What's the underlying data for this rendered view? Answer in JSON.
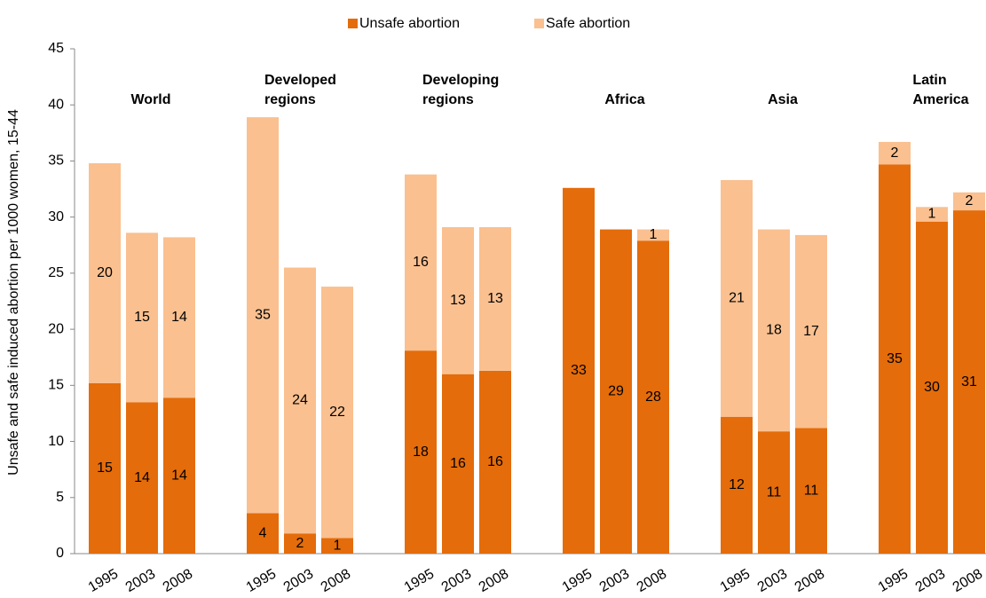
{
  "chart_data": {
    "type": "stacked_bar",
    "y_label": "Unsafe and safe induced abortion per 1000 women, 15-44",
    "group_labels": [
      "World",
      "Developed regions",
      "Developing regions",
      "Africa",
      "Asia",
      "Latin America"
    ],
    "categories": [
      "1995",
      "2003",
      "2008",
      "1995",
      "2003",
      "2008",
      "1995",
      "2003",
      "2008",
      "1995",
      "2003",
      "2008",
      "1995",
      "2003",
      "2008",
      "1995",
      "2003",
      "2008"
    ],
    "series": [
      {
        "name": "Unsafe abortion",
        "color": "#e46c0a",
        "values": [
          15.2,
          13.5,
          13.9,
          3.6,
          1.8,
          1.4,
          18.1,
          16.0,
          16.3,
          32.6,
          28.9,
          27.9,
          12.2,
          10.9,
          11.2,
          34.7,
          29.6,
          30.6
        ],
        "value_labels": [
          "15",
          "14",
          "14",
          "4",
          "2",
          "1",
          "18",
          "16",
          "16",
          "33",
          "29",
          "28",
          "12",
          "11",
          "11",
          "35",
          "30",
          "31"
        ]
      },
      {
        "name": "Safe abortion",
        "color": "#fac090",
        "values": [
          19.6,
          15.1,
          14.3,
          35.3,
          23.7,
          22.4,
          15.7,
          13.1,
          12.8,
          0,
          0,
          1.0,
          21.1,
          18.0,
          17.2,
          2.0,
          1.3,
          1.6
        ],
        "value_labels": [
          "20",
          "15",
          "14",
          "35",
          "24",
          "22",
          "16",
          "13",
          "13",
          null,
          null,
          "1",
          "21",
          "18",
          "17",
          "2",
          "1",
          "2"
        ]
      }
    ],
    "ylim": [
      0,
      45
    ],
    "yticks": [
      0,
      5,
      10,
      15,
      20,
      25,
      30,
      35,
      40,
      45
    ],
    "legend": "top"
  }
}
